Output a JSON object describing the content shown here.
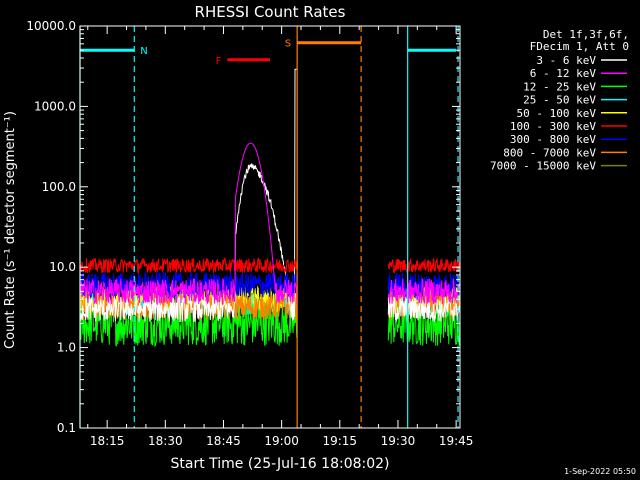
{
  "chart_data": {
    "type": "line",
    "title": "RHESSI Count Rates",
    "xlabel": "Start Time (25-Jul-16 18:08:02)",
    "ylabel": "Count Rate (s⁻¹ detector segment⁻¹)",
    "y_scale": "log",
    "ylim": [
      0.1,
      10000
    ],
    "y_ticks": [
      "0.1",
      "1.0",
      "10.0",
      "100.0",
      "1000.0",
      "10000.0"
    ],
    "x_range_min": [
      8,
      106
    ],
    "x_ticks": [
      "18:15",
      "18:30",
      "18:45",
      "19:00",
      "19:15",
      "19:30",
      "19:45"
    ],
    "x_tick_min": [
      15,
      30,
      45,
      60,
      75,
      90,
      105
    ],
    "legend_header": [
      "Det 1f,3f,6f,",
      "FDecim 1, Att 0"
    ],
    "legend_placement": "right",
    "series": [
      {
        "name": "3 - 6 keV",
        "color": "#ffffff",
        "baseline": 3.0
      },
      {
        "name": "6 - 12 keV",
        "color": "#ff00ff",
        "baseline": 5.0
      },
      {
        "name": "12 - 25 keV",
        "color": "#00ff00",
        "baseline": 2.0
      },
      {
        "name": "25 - 50 keV",
        "color": "#00ffff",
        "baseline": 3.5
      },
      {
        "name": "50 - 100 keV",
        "color": "#ffff00",
        "baseline": 4.0
      },
      {
        "name": "100 - 300 keV",
        "color": "#ff0000",
        "baseline": 10.5
      },
      {
        "name": "300 - 800 keV",
        "color": "#0000ff",
        "baseline": 6.0
      },
      {
        "name": "800 - 7000 keV",
        "color": "#ff8000",
        "baseline": 3.2
      },
      {
        "name": "7000 - 15000 keV",
        "color": "#808000",
        "baseline": 2.5
      }
    ],
    "flare_peak": {
      "time_min": 52,
      "value_6_12": 350,
      "value_3_6": 175
    },
    "data_segments_min": [
      [
        8,
        64
      ],
      [
        87.5,
        106
      ]
    ],
    "flags": [
      {
        "label": "N",
        "color": "#00ffff",
        "segments": [
          [
            8,
            22
          ],
          [
            92.5,
            105
          ]
        ],
        "level": 5000
      },
      {
        "label": "F",
        "color": "#ff0000",
        "segments": [
          [
            46,
            57
          ]
        ],
        "level": 3800
      },
      {
        "label": "S",
        "color": "#ff8000",
        "segments": [
          [
            64,
            80.5
          ]
        ],
        "level": 6200
      }
    ],
    "vlines": [
      {
        "time_min": 8,
        "color": "#00ffff",
        "style": "solid"
      },
      {
        "time_min": 22,
        "color": "#00ffff",
        "style": "dashed"
      },
      {
        "time_min": 92.5,
        "color": "#00ffff",
        "style": "solid"
      },
      {
        "time_min": 105.5,
        "color": "#00ffff",
        "style": "dashed"
      },
      {
        "time_min": 64,
        "color": "#ff8000",
        "style": "solid"
      },
      {
        "time_min": 80.5,
        "color": "#ff8000",
        "style": "dashed"
      }
    ]
  },
  "footer_timestamp": "1-Sep-2022 05:50"
}
